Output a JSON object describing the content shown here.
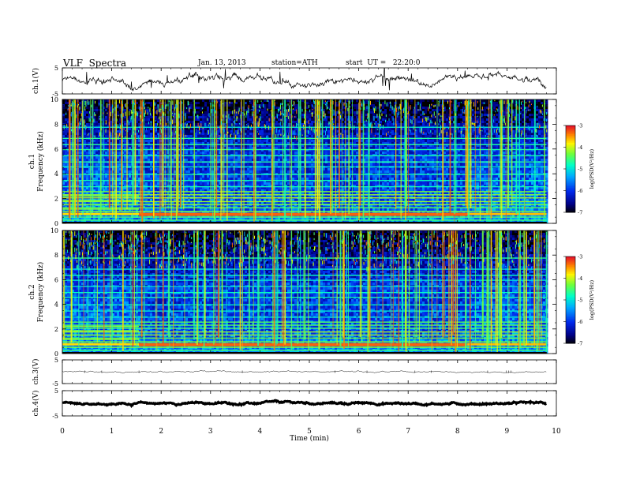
{
  "header": {
    "title": "VLF  Spectra",
    "date": "Jan. 13, 2013",
    "station": "station=ATH",
    "start": "start  UT =   22:20:0"
  },
  "chart_data": [
    {
      "type": "line",
      "panel": "ch1_waveform",
      "ylabel": "ch.1(V)",
      "ylim": [
        -5,
        5
      ],
      "yticks": [
        "5",
        "-5"
      ],
      "baseline_value": 0.5,
      "xlim": [
        0,
        10
      ],
      "data_extent_min": 9.8
    },
    {
      "type": "heatmap",
      "panel": "ch1_spectrogram",
      "ylabel": "ch.1\nFrequency  (kHz)",
      "ylim": [
        0,
        10
      ],
      "yticks": [
        "0",
        "2",
        "4",
        "6",
        "8",
        "10"
      ],
      "xlim": [
        0,
        10
      ],
      "colorbar": {
        "label": "log(PSD(V²/Hz)",
        "range": [
          -7,
          -3
        ],
        "ticks": [
          "-3",
          "-4",
          "-5",
          "-6",
          "-7"
        ]
      }
    },
    {
      "type": "heatmap",
      "panel": "ch2_spectrogram",
      "ylabel": "ch.2\nFrequency  (kHz)",
      "ylim": [
        0,
        10
      ],
      "yticks": [
        "0",
        "2",
        "4",
        "6",
        "8",
        "10"
      ],
      "xlim": [
        0,
        10
      ],
      "colorbar": {
        "label": "log(PSD(V²/Hz)",
        "range": [
          -7,
          -3
        ],
        "ticks": [
          "-3",
          "-4",
          "-5",
          "-6",
          "-7"
        ]
      }
    },
    {
      "type": "line",
      "panel": "ch3_waveform",
      "ylabel": "ch.3(V)",
      "ylim": [
        -5,
        5
      ],
      "yticks": [
        "5",
        "-5"
      ],
      "baseline_value": 0
    },
    {
      "type": "line",
      "panel": "ch4_waveform",
      "ylabel": "ch.4(V)",
      "ylim": [
        -5,
        5
      ],
      "yticks": [
        "5",
        "-5"
      ],
      "baseline_value": 0
    }
  ],
  "xaxis": {
    "label": "Time  (min)",
    "ticks": [
      "0",
      "1",
      "2",
      "3",
      "4",
      "5",
      "6",
      "7",
      "8",
      "9",
      "10"
    ]
  }
}
